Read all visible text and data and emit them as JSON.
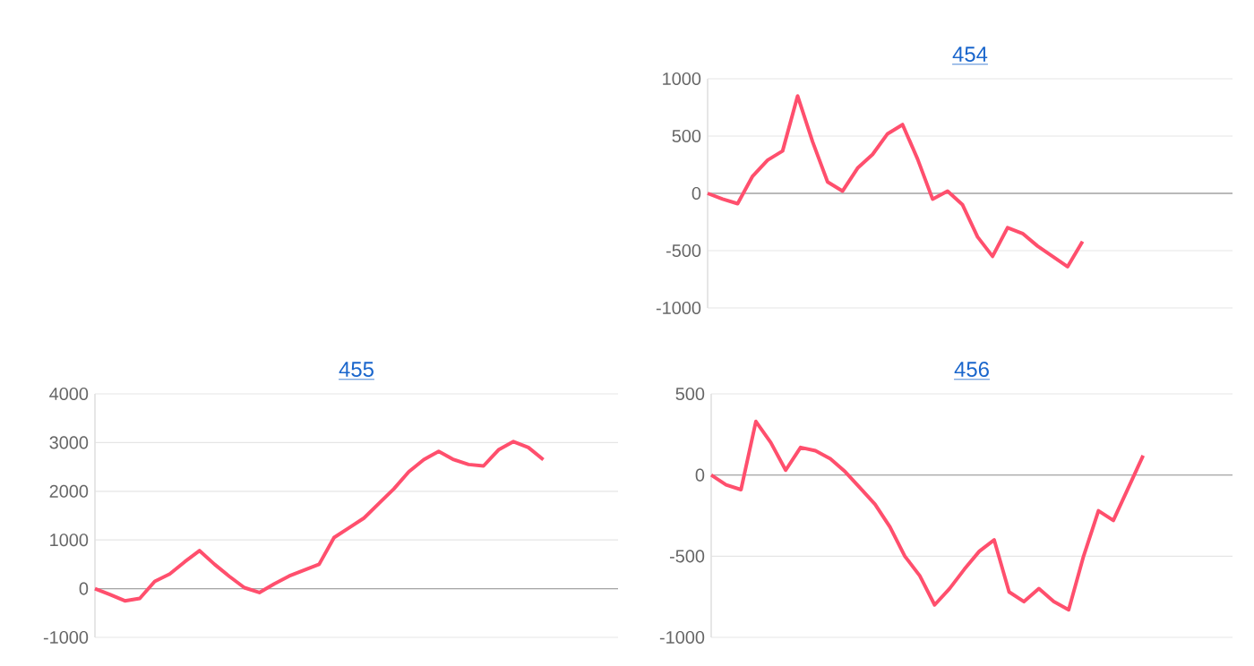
{
  "chart_data": [
    {
      "type": "line",
      "title": "454",
      "categories": [
        null,
        null,
        null,
        null,
        null,
        null,
        null,
        null,
        null,
        null,
        null,
        null,
        null,
        null,
        null,
        null,
        null,
        null,
        null,
        null,
        null,
        null,
        null,
        null,
        null,
        null,
        null,
        null,
        null,
        null,
        null,
        null,
        null,
        null,
        null,
        null
      ],
      "tick_labels": "y",
      "grid": "y",
      "ylim": [
        -1000,
        1000
      ],
      "yticks": [
        -1000,
        -500,
        0,
        500,
        1000
      ],
      "series": [
        {
          "color": "#ff4f6d",
          "values": [
            0,
            -50,
            -90,
            150,
            290,
            370,
            850,
            450,
            100,
            20,
            220,
            340,
            520,
            600,
            300,
            -50,
            20,
            -100,
            -380,
            -550,
            -300,
            -350,
            -460,
            -550,
            -640,
            -420,
            null,
            null,
            null,
            null,
            null,
            null,
            null,
            null,
            null,
            null
          ]
        }
      ]
    },
    {
      "type": "line",
      "title": "455",
      "categories": [
        null,
        null,
        null,
        null,
        null,
        null,
        null,
        null,
        null,
        null,
        null,
        null,
        null,
        null,
        null,
        null,
        null,
        null,
        null,
        null,
        null,
        null,
        null,
        null,
        null,
        null,
        null,
        null,
        null,
        null,
        null,
        null,
        null,
        null,
        null,
        null
      ],
      "tick_labels": "y",
      "grid": "y",
      "ylim": [
        -1000,
        4000
      ],
      "yticks": [
        -1000,
        0,
        1000,
        2000,
        3000,
        4000
      ],
      "series": [
        {
          "color": "#ff4f6d",
          "values": [
            0,
            -120,
            -250,
            -200,
            150,
            300,
            550,
            780,
            500,
            250,
            20,
            -80,
            100,
            260,
            380,
            500,
            1050,
            1250,
            1450,
            1750,
            2050,
            2400,
            2650,
            2820,
            2650,
            2550,
            2520,
            2850,
            3020,
            2900,
            2650,
            null,
            null,
            null,
            null,
            null
          ]
        }
      ]
    },
    {
      "type": "line",
      "title": "456",
      "categories": [
        null,
        null,
        null,
        null,
        null,
        null,
        null,
        null,
        null,
        null,
        null,
        null,
        null,
        null,
        null,
        null,
        null,
        null,
        null,
        null,
        null,
        null,
        null,
        null,
        null,
        null,
        null,
        null,
        null,
        null,
        null,
        null,
        null,
        null,
        null,
        null
      ],
      "tick_labels": "y",
      "grid": "y",
      "ylim": [
        -1000,
        500
      ],
      "yticks": [
        -1000,
        -500,
        0,
        500
      ],
      "series": [
        {
          "color": "#ff4f6d",
          "values": [
            0,
            -60,
            -90,
            330,
            200,
            30,
            170,
            150,
            100,
            20,
            -80,
            -180,
            -320,
            -500,
            -620,
            -800,
            -700,
            -580,
            -470,
            -400,
            -720,
            -780,
            -700,
            -780,
            -830,
            -500,
            -220,
            -280,
            -80,
            120,
            null,
            null,
            null,
            null,
            null,
            null
          ]
        }
      ]
    }
  ]
}
